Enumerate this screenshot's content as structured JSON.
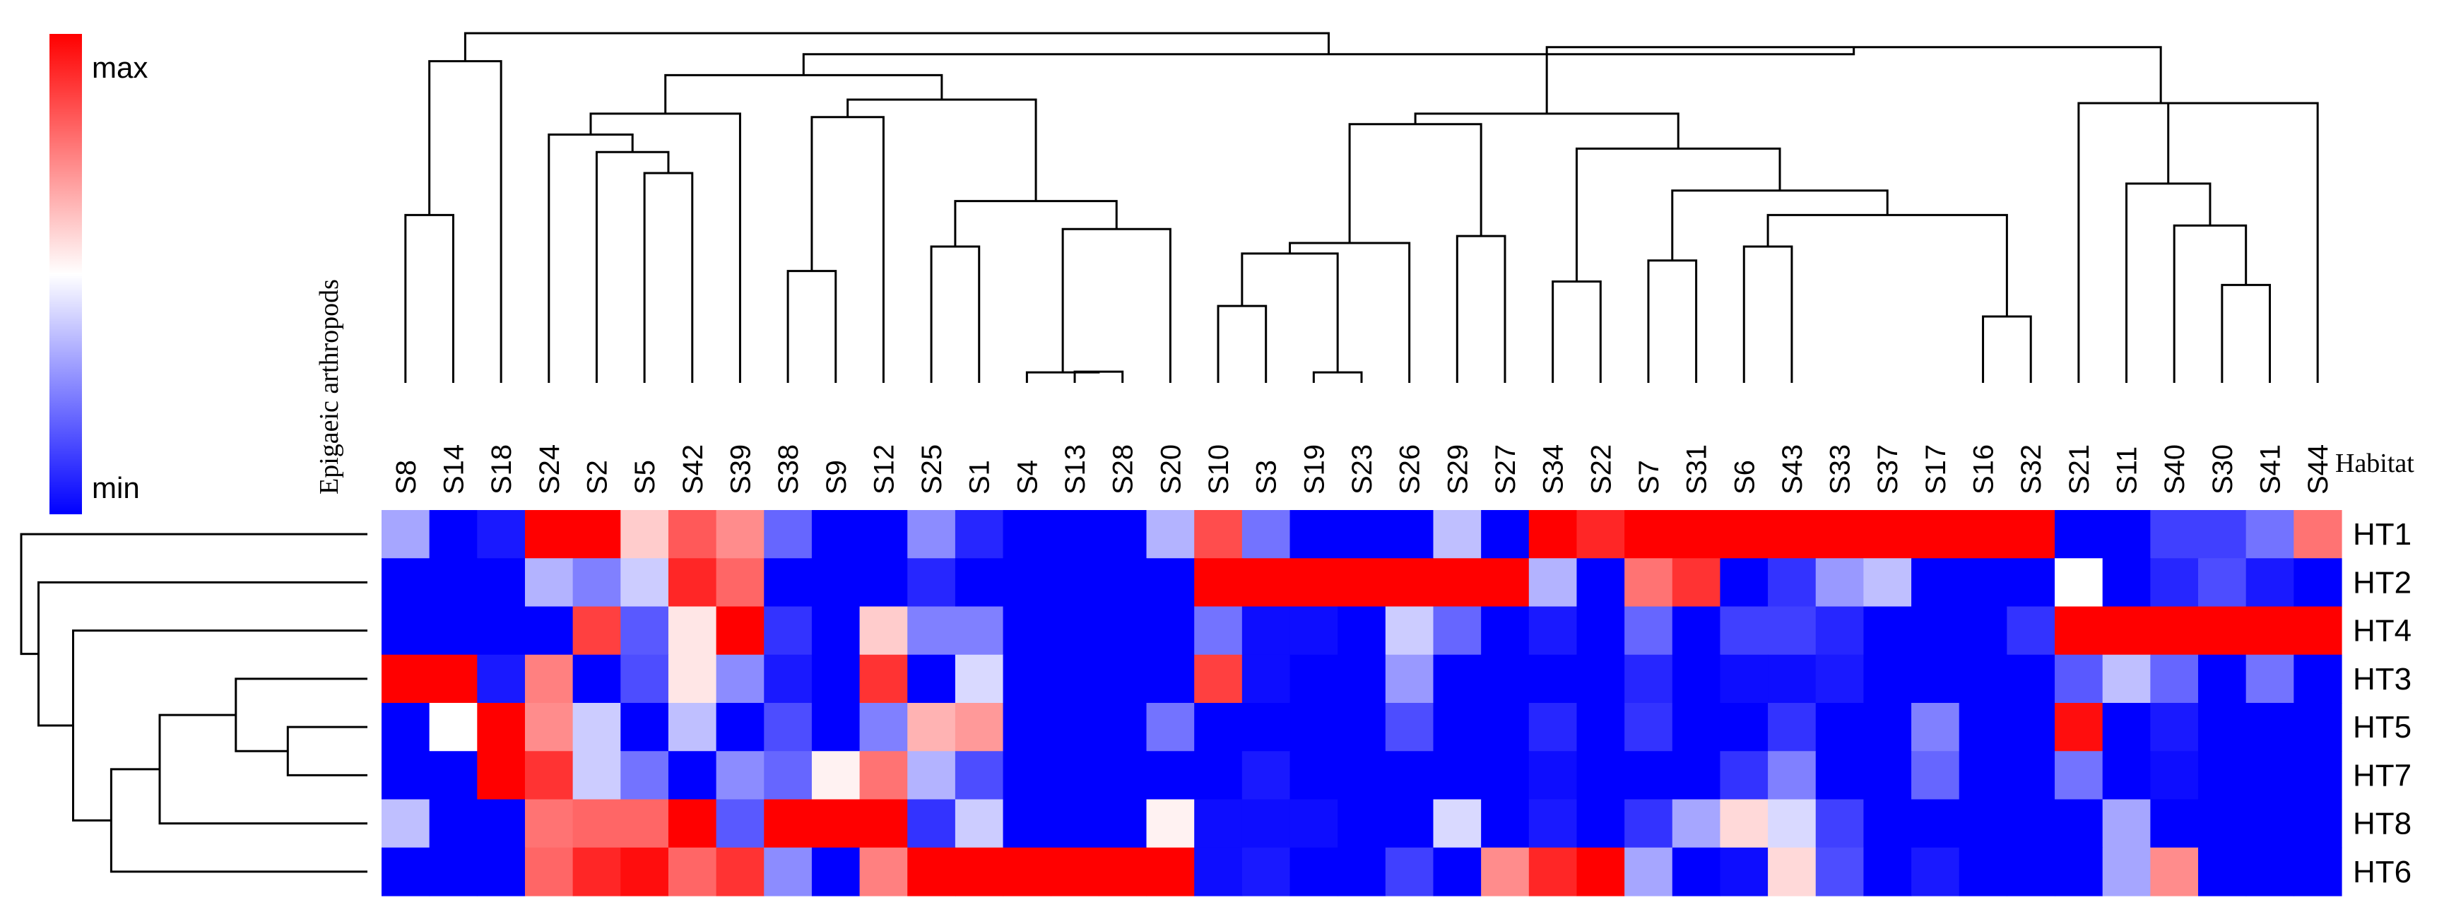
{
  "chart_data": {
    "type": "heatmap",
    "title": "",
    "column_group_label": "Epigaeic arthropods",
    "row_header": "Habitat",
    "legend": {
      "max_label": "max",
      "min_label": "min",
      "colors": {
        "max": "#ff0000",
        "mid": "#ffffff",
        "min": "#0000ff"
      }
    },
    "columns": [
      "S8",
      "S14",
      "S18",
      "S24",
      "S2",
      "S5",
      "S42",
      "S39",
      "S38",
      "S9",
      "S12",
      "S25",
      "S1",
      "S4",
      "S13",
      "S28",
      "S20",
      "S10",
      "S3",
      "S19",
      "S23",
      "S26",
      "S29",
      "S27",
      "S34",
      "S22",
      "S7",
      "S31",
      "S6",
      "S43",
      "S33",
      "S37",
      "S17",
      "S16",
      "S32",
      "S21",
      "S11",
      "S40",
      "S30",
      "S41",
      "S44"
    ],
    "rows": [
      "HT1",
      "HT2",
      "HT4",
      "HT3",
      "HT5",
      "HT7",
      "HT8",
      "HT6"
    ],
    "value_scale": "relative, -1 = min (blue), 0 = mid (white), 1 = max (red)",
    "values": [
      [
        -0.35,
        -1,
        -0.9,
        1,
        1,
        0.2,
        0.65,
        0.45,
        -0.6,
        -1,
        -1,
        -0.45,
        -0.85,
        -1,
        -1,
        -1,
        -0.3,
        0.7,
        -0.55,
        -1,
        -1,
        -1,
        -0.25,
        -1,
        1,
        0.85,
        1,
        1,
        1,
        1,
        1,
        1,
        1,
        1,
        1,
        -1,
        -1,
        -0.75,
        -0.75,
        -0.55,
        0.55
      ],
      [
        -1,
        -1,
        -1,
        -0.3,
        -0.5,
        -0.2,
        0.85,
        0.6,
        -1,
        -1,
        -1,
        -0.85,
        -1,
        -1,
        -1,
        -1,
        -1,
        1,
        1,
        1,
        1,
        1,
        1,
        1,
        -0.3,
        -1,
        0.55,
        0.8,
        -1,
        -0.8,
        -0.4,
        -0.25,
        -1,
        -1,
        -1,
        0,
        -1,
        -0.85,
        -0.7,
        -0.9,
        -1
      ],
      [
        -1,
        -1,
        -1,
        -1,
        0.75,
        -0.65,
        0.1,
        1,
        -0.8,
        -1,
        0.2,
        -0.5,
        -0.5,
        -1,
        -1,
        -1,
        -1,
        -0.55,
        -0.95,
        -0.95,
        -1,
        -0.2,
        -0.6,
        -1,
        -0.9,
        -1,
        -0.6,
        -1,
        -0.75,
        -0.75,
        -0.85,
        -1,
        -1,
        -1,
        -0.8,
        1,
        1,
        1,
        1,
        1,
        1
      ],
      [
        1,
        1,
        -0.9,
        0.5,
        -1,
        -0.7,
        0.1,
        -0.45,
        -0.9,
        -1,
        0.8,
        -1,
        -0.15,
        -1,
        -1,
        -1,
        -1,
        0.75,
        -0.95,
        -1,
        -1,
        -0.4,
        -1,
        -1,
        -1,
        -1,
        -0.85,
        -1,
        -0.95,
        -0.95,
        -0.9,
        -1,
        -1,
        -1,
        -1,
        -0.65,
        -0.25,
        -0.6,
        -1,
        -0.55,
        -1
      ],
      [
        -1,
        0,
        1,
        0.45,
        -0.2,
        -1,
        -0.25,
        -1,
        -0.7,
        -1,
        -0.5,
        0.3,
        0.4,
        -1,
        -1,
        -1,
        -0.55,
        -1,
        -1,
        -1,
        -1,
        -0.7,
        -1,
        -1,
        -0.85,
        -1,
        -0.8,
        -1,
        -1,
        -0.8,
        -1,
        -1,
        -0.5,
        -1,
        -1,
        0.95,
        -1,
        -0.9,
        -1,
        -1,
        -1
      ],
      [
        -1,
        -1,
        1,
        0.8,
        -0.2,
        -0.55,
        -1,
        -0.45,
        -0.6,
        0.05,
        0.55,
        -0.3,
        -0.7,
        -1,
        -1,
        -1,
        -1,
        -1,
        -0.9,
        -1,
        -1,
        -1,
        -1,
        -1,
        -0.95,
        -1,
        -1,
        -1,
        -0.8,
        -0.5,
        -1,
        -1,
        -0.6,
        -1,
        -1,
        -0.55,
        -1,
        -0.95,
        -1,
        -1,
        -1
      ],
      [
        -0.25,
        -1,
        -1,
        0.55,
        0.6,
        0.6,
        1,
        -0.65,
        1,
        1,
        1,
        -0.8,
        -0.2,
        -1,
        -1,
        -1,
        0.05,
        -0.95,
        -0.95,
        -0.95,
        -1,
        -1,
        -0.15,
        -1,
        -0.9,
        -1,
        -0.8,
        -0.35,
        0.15,
        -0.15,
        -0.75,
        -1,
        -1,
        -1,
        -1,
        -1,
        -0.35,
        -1,
        -1,
        -1,
        -1
      ],
      [
        -1,
        -1,
        -1,
        0.6,
        0.85,
        0.95,
        0.6,
        0.8,
        -0.45,
        -1,
        0.5,
        1,
        1,
        1,
        1,
        1,
        1,
        -0.95,
        -0.9,
        -1,
        -1,
        -0.75,
        -1,
        0.45,
        0.85,
        1,
        -0.35,
        -1,
        -0.95,
        0.15,
        -0.7,
        -1,
        -0.9,
        -1,
        -1,
        -1,
        -0.35,
        0.45,
        -1,
        -1,
        -1
      ]
    ]
  }
}
